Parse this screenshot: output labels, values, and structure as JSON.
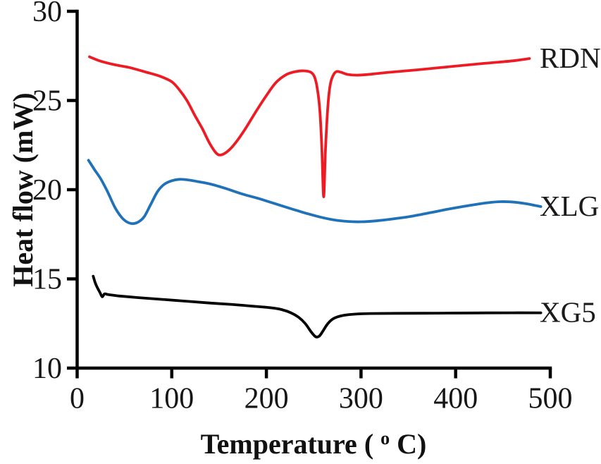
{
  "figure": {
    "background": "#ffffff",
    "text_color": "#161616",
    "axis_color": "#000000"
  },
  "chart_data": {
    "type": "line",
    "title": "",
    "xlabel": "Temperature (°C)",
    "xlabel_parts": {
      "pre": "Temperature (",
      "sup": "o",
      "post": "C)"
    },
    "ylabel": "Heat flow (mW)",
    "xlim": [
      0,
      500
    ],
    "ylim": [
      10,
      30
    ],
    "xticks": [
      0,
      100,
      200,
      300,
      400,
      500
    ],
    "yticks": [
      10,
      15,
      20,
      25,
      30
    ],
    "grid": false,
    "legend_position": "labels-at-curve-ends-right",
    "series": [
      {
        "name": "RDN",
        "color": "#ed1c24",
        "points": [
          [
            13,
            27.45
          ],
          [
            25,
            27.2
          ],
          [
            40,
            27.0
          ],
          [
            55,
            26.85
          ],
          [
            72,
            26.6
          ],
          [
            88,
            26.35
          ],
          [
            100,
            26.05
          ],
          [
            108,
            25.6
          ],
          [
            116,
            25.0
          ],
          [
            124,
            24.2
          ],
          [
            132,
            23.45
          ],
          [
            140,
            22.6
          ],
          [
            147,
            22.05
          ],
          [
            152,
            21.95
          ],
          [
            159,
            22.15
          ],
          [
            167,
            22.6
          ],
          [
            177,
            23.35
          ],
          [
            188,
            24.3
          ],
          [
            199,
            25.2
          ],
          [
            210,
            26.0
          ],
          [
            221,
            26.45
          ],
          [
            231,
            26.62
          ],
          [
            240,
            26.66
          ],
          [
            247,
            26.58
          ],
          [
            251,
            26.3
          ],
          [
            254,
            25.6
          ],
          [
            256.5,
            24.4
          ],
          [
            258.5,
            22.4
          ],
          [
            260.5,
            19.6
          ],
          [
            262.5,
            22.3
          ],
          [
            265,
            24.7
          ],
          [
            267.5,
            25.9
          ],
          [
            270.5,
            26.4
          ],
          [
            274,
            26.62
          ],
          [
            279,
            26.58
          ],
          [
            286,
            26.46
          ],
          [
            296,
            26.42
          ],
          [
            310,
            26.47
          ],
          [
            330,
            26.58
          ],
          [
            360,
            26.72
          ],
          [
            395,
            26.9
          ],
          [
            430,
            27.08
          ],
          [
            460,
            27.22
          ],
          [
            478,
            27.35
          ]
        ]
      },
      {
        "name": "XLG",
        "color": "#1f72b8",
        "points": [
          [
            12,
            21.65
          ],
          [
            18,
            21.15
          ],
          [
            25,
            20.6
          ],
          [
            32,
            19.9
          ],
          [
            40,
            19.0
          ],
          [
            47,
            18.45
          ],
          [
            53,
            18.18
          ],
          [
            59,
            18.1
          ],
          [
            65,
            18.2
          ],
          [
            71,
            18.5
          ],
          [
            78,
            19.2
          ],
          [
            85,
            19.9
          ],
          [
            92,
            20.3
          ],
          [
            100,
            20.5
          ],
          [
            108,
            20.58
          ],
          [
            117,
            20.55
          ],
          [
            128,
            20.45
          ],
          [
            142,
            20.3
          ],
          [
            158,
            20.05
          ],
          [
            175,
            19.75
          ],
          [
            192,
            19.5
          ],
          [
            210,
            19.2
          ],
          [
            228,
            18.9
          ],
          [
            244,
            18.65
          ],
          [
            258,
            18.45
          ],
          [
            272,
            18.3
          ],
          [
            286,
            18.22
          ],
          [
            300,
            18.2
          ],
          [
            315,
            18.25
          ],
          [
            332,
            18.35
          ],
          [
            352,
            18.5
          ],
          [
            374,
            18.72
          ],
          [
            396,
            18.95
          ],
          [
            416,
            19.13
          ],
          [
            434,
            19.27
          ],
          [
            448,
            19.33
          ],
          [
            462,
            19.3
          ],
          [
            476,
            19.2
          ],
          [
            490,
            19.05
          ]
        ]
      },
      {
        "name": "XG5",
        "color": "#000000",
        "points": [
          [
            17,
            15.15
          ],
          [
            19,
            14.8
          ],
          [
            21,
            14.55
          ],
          [
            24,
            14.25
          ],
          [
            26.5,
            14.0
          ],
          [
            29,
            14.16
          ],
          [
            33,
            14.12
          ],
          [
            45,
            14.04
          ],
          [
            65,
            13.95
          ],
          [
            90,
            13.85
          ],
          [
            115,
            13.75
          ],
          [
            140,
            13.65
          ],
          [
            165,
            13.56
          ],
          [
            188,
            13.46
          ],
          [
            205,
            13.38
          ],
          [
            216,
            13.28
          ],
          [
            226,
            13.1
          ],
          [
            234,
            12.85
          ],
          [
            241,
            12.5
          ],
          [
            247,
            12.05
          ],
          [
            252,
            11.76
          ],
          [
            256,
            11.8
          ],
          [
            260,
            12.1
          ],
          [
            265,
            12.5
          ],
          [
            271,
            12.78
          ],
          [
            280,
            12.94
          ],
          [
            292,
            13.02
          ],
          [
            310,
            13.06
          ],
          [
            340,
            13.07
          ],
          [
            380,
            13.08
          ],
          [
            420,
            13.09
          ],
          [
            460,
            13.1
          ],
          [
            490,
            13.1
          ]
        ]
      }
    ]
  }
}
